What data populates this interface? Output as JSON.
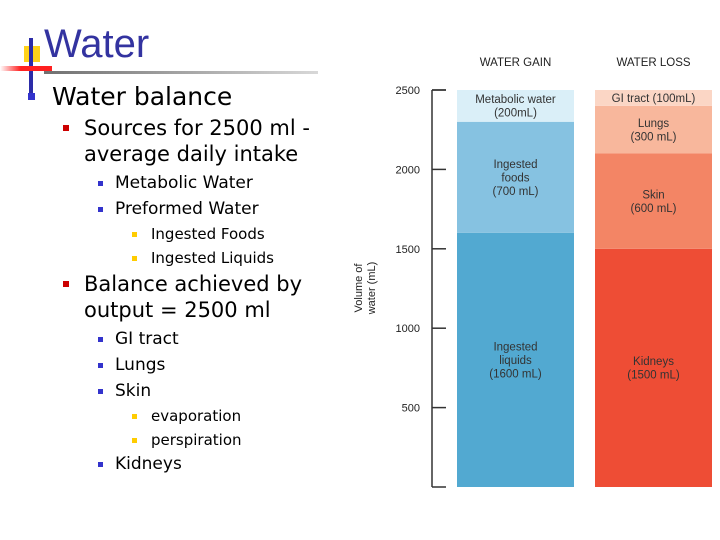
{
  "slide": {
    "title": "Water",
    "outline": [
      {
        "level": 1,
        "text": "Water balance"
      },
      {
        "level": 2,
        "text": "Sources for 2500 ml - average daily intake"
      },
      {
        "level": 3,
        "text": "Metabolic Water"
      },
      {
        "level": 3,
        "text": "Preformed Water"
      },
      {
        "level": 4,
        "text": "Ingested Foods"
      },
      {
        "level": 4,
        "text": "Ingested Liquids"
      },
      {
        "level": 2,
        "text": "Balance achieved by output = 2500 ml"
      },
      {
        "level": 3,
        "text": "GI tract"
      },
      {
        "level": 3,
        "text": "Lungs"
      },
      {
        "level": 3,
        "text": "Skin"
      },
      {
        "level": 4,
        "text": "evaporation"
      },
      {
        "level": 4,
        "text": "perspiration"
      },
      {
        "level": 3,
        "text": "Kidneys"
      }
    ]
  },
  "chart_data": {
    "type": "bar",
    "stacked": true,
    "categories": [
      "WATER GAIN",
      "WATER LOSS"
    ],
    "ylabel": [
      "Volume of",
      "water (mL)"
    ],
    "ylim": [
      0,
      2500
    ],
    "yticks": [
      500,
      1000,
      1500,
      2000,
      2500
    ],
    "grid": false,
    "stacks": [
      {
        "category": "WATER GAIN",
        "segments": [
          {
            "label": [
              "Ingested",
              "liquids",
              "(1600 mL)"
            ],
            "value": 1600,
            "color": "#52a9d1"
          },
          {
            "label": [
              "Ingested",
              "foods",
              "(700 mL)"
            ],
            "value": 700,
            "color": "#86c2e1"
          },
          {
            "label": [
              "Metabolic water",
              "(200mL)"
            ],
            "value": 200,
            "color": "#daeff8"
          }
        ]
      },
      {
        "category": "WATER LOSS",
        "segments": [
          {
            "label": [
              "Kidneys",
              "(1500 mL)"
            ],
            "value": 1500,
            "color": "#ee4d35"
          },
          {
            "label": [
              "Skin",
              "(600 mL)"
            ],
            "value": 600,
            "color": "#f38565"
          },
          {
            "label": [
              "Lungs",
              "(300 mL)"
            ],
            "value": 300,
            "color": "#f8b79c"
          },
          {
            "label": [
              "GI tract (100mL)"
            ],
            "value": 100,
            "color": "#fbd6c5"
          }
        ]
      }
    ]
  }
}
